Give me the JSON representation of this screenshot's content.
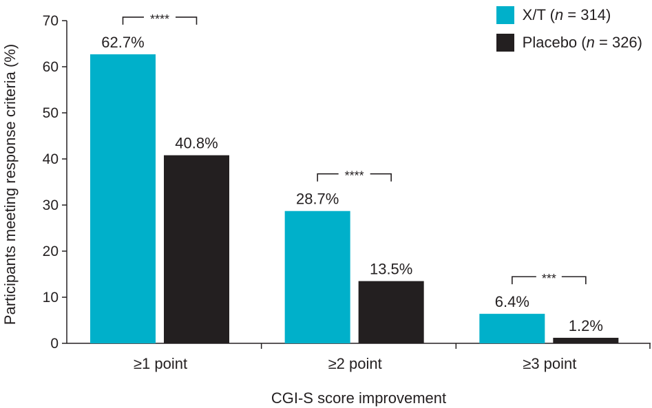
{
  "chart_data": {
    "type": "bar",
    "title": "",
    "xlabel": "CGI-S score improvement",
    "ylabel": "Participants meeting response criteria (%)",
    "ylim": [
      0,
      70
    ],
    "yticks": [
      0,
      10,
      20,
      30,
      40,
      50,
      60,
      70
    ],
    "categories": [
      "≥1 point",
      "≥2 point",
      "≥3 point"
    ],
    "series": [
      {
        "name": "X/T",
        "n_label": "314",
        "color": "#00b0ca",
        "values": [
          62.7,
          28.7,
          6.4
        ],
        "labels": [
          "62.7%",
          "28.7%",
          "6.4%"
        ]
      },
      {
        "name": "Placebo",
        "n_label": "326",
        "color": "#231f20",
        "values": [
          40.8,
          13.5,
          1.2
        ],
        "labels": [
          "40.8%",
          "13.5%",
          "1.2%"
        ]
      }
    ],
    "significance": [
      "****",
      "****",
      "***"
    ],
    "legend_position": "top-right",
    "grid": false
  }
}
